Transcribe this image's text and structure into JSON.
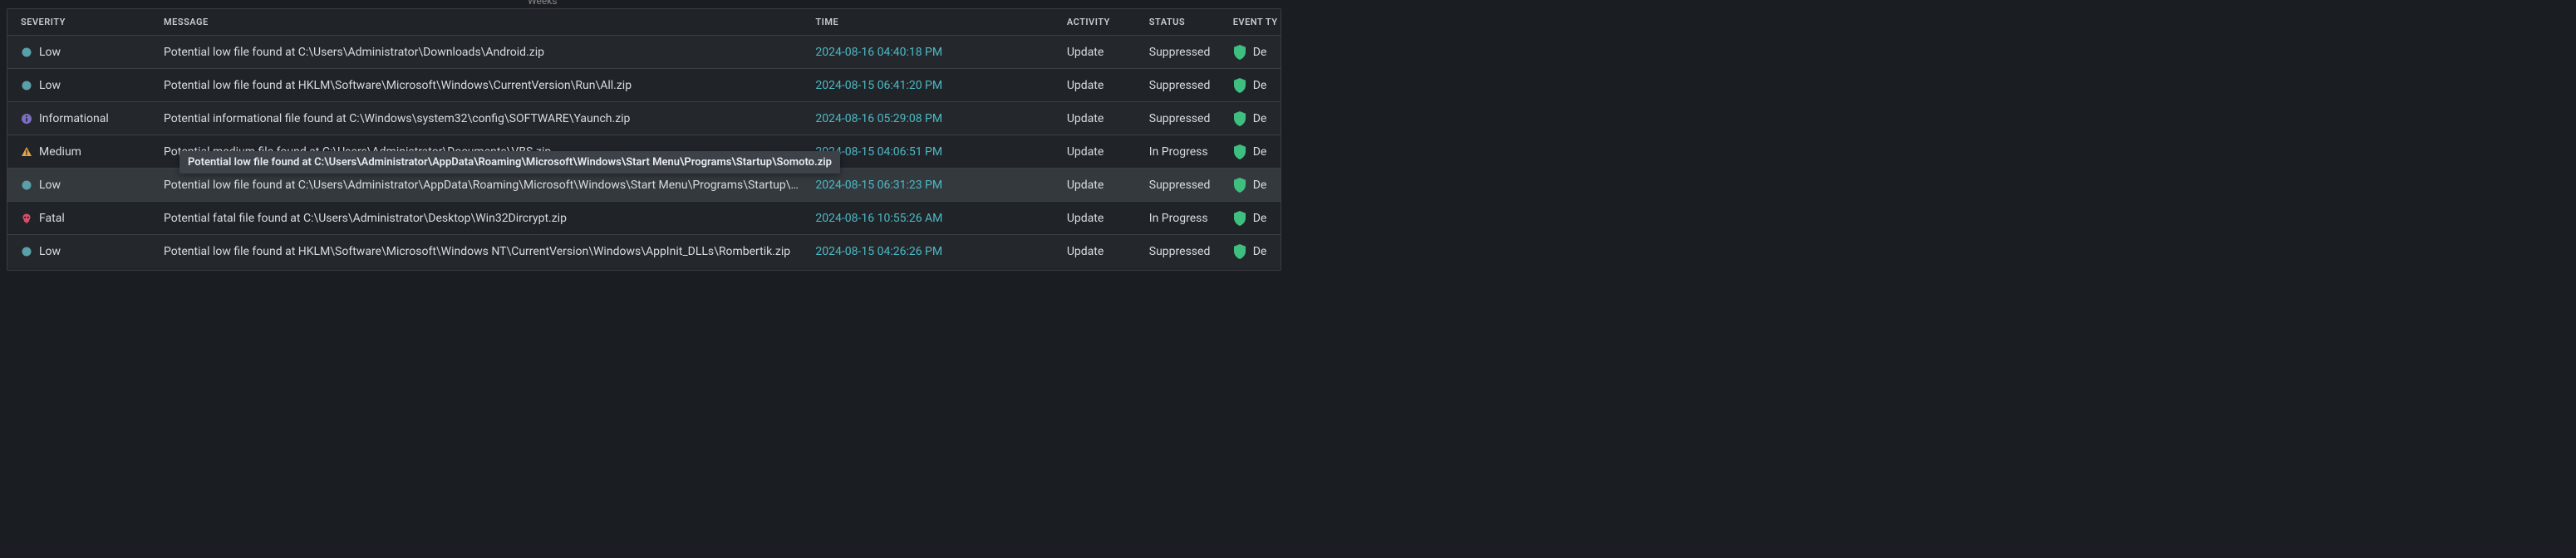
{
  "top_label": "Weeks",
  "columns": {
    "severity": "SEVERITY",
    "message": "MESSAGE",
    "time": "TIME",
    "activity": "ACTIVITY",
    "status": "STATUS",
    "event_type": "EVENT TY"
  },
  "tooltip_text": "Potential low file found at C:\\Users\\Administrator\\AppData\\Roaming\\Microsoft\\Windows\\Start Menu\\Programs\\Startup\\Somoto.zip",
  "severity_styles": {
    "Low": {
      "icon": "circle",
      "color": "#5aa0a8"
    },
    "Informational": {
      "icon": "info",
      "color": "#7a6fc4"
    },
    "Medium": {
      "icon": "tri",
      "color": "#e8a33d"
    },
    "Fatal": {
      "icon": "skull",
      "color": "#d94f6a"
    }
  },
  "shield_color": "#3fbf7f",
  "time_color": "#4db8c4",
  "rows": [
    {
      "severity": "Low",
      "message": "Potential low file found at C:\\Users\\Administrator\\Downloads\\Android.zip",
      "time": "2024-08-16 04:40:18 PM",
      "activity": "Update",
      "status": "Suppressed",
      "event": "De",
      "row_bg": "normal"
    },
    {
      "severity": "Low",
      "message": "Potential low file found at HKLM\\Software\\Microsoft\\Windows\\CurrentVersion\\Run\\All.zip",
      "time": "2024-08-15 06:41:20 PM",
      "activity": "Update",
      "status": "Suppressed",
      "event": "De",
      "row_bg": "alt"
    },
    {
      "severity": "Informational",
      "message": "Potential informational file found at C:\\Windows\\system32\\config\\SOFTWARE\\Yaunch.zip",
      "time": "2024-08-16 05:29:08 PM",
      "activity": "Update",
      "status": "Suppressed",
      "event": "De",
      "row_bg": "normal"
    },
    {
      "severity": "Medium",
      "message": "Potential medium file found at C:\\Users\\Administrator\\Documents\\VBS.zip",
      "time": "2024-08-15 04:06:51 PM",
      "activity": "Update",
      "status": "In Progress",
      "event": "De",
      "row_bg": "alt"
    },
    {
      "severity": "Low",
      "message": "Potential low file found at C:\\Users\\Administrator\\AppData\\Roaming\\Microsoft\\Windows\\Start Menu\\Programs\\Startup\\S…",
      "time": "2024-08-15 06:31:23 PM",
      "activity": "Update",
      "status": "Suppressed",
      "event": "De",
      "row_bg": "hover"
    },
    {
      "severity": "Fatal",
      "message": "Potential fatal file found at C:\\Users\\Administrator\\Desktop\\Win32Dircrypt.zip",
      "time": "2024-08-16 10:55:26 AM",
      "activity": "Update",
      "status": "In Progress",
      "event": "De",
      "row_bg": "alt"
    },
    {
      "severity": "Low",
      "message": "Potential low file found at HKLM\\Software\\Microsoft\\Windows NT\\CurrentVersion\\Windows\\AppInit_DLLs\\Rombertik.zip",
      "time": "2024-08-15 04:26:26 PM",
      "activity": "Update",
      "status": "Suppressed",
      "event": "De",
      "row_bg": "normal"
    }
  ]
}
